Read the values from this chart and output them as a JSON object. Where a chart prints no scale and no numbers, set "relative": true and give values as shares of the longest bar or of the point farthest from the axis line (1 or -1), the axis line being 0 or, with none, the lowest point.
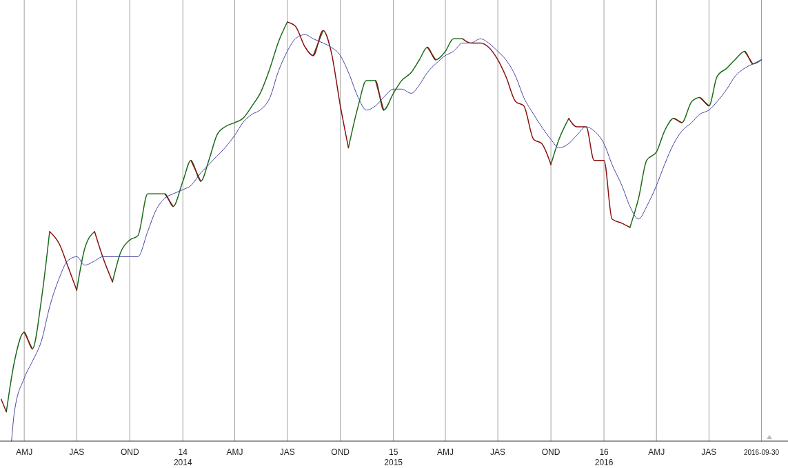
{
  "chart_data": {
    "type": "line",
    "relative": true,
    "grid": "x",
    "xlim": [
      "2013-02-18",
      "2016-11-15"
    ],
    "xticks": [
      {
        "value": "2013-04-01",
        "label": "AMJ"
      },
      {
        "value": "2013-07-01",
        "label": "JAS"
      },
      {
        "value": "2013-10-01",
        "label": "OND"
      },
      {
        "value": "2014-01-01",
        "label": "14"
      },
      {
        "value": "2014-04-01",
        "label": "AMJ"
      },
      {
        "value": "2014-07-01",
        "label": "JAS"
      },
      {
        "value": "2014-10-01",
        "label": "OND"
      },
      {
        "value": "2015-01-01",
        "label": "15"
      },
      {
        "value": "2015-04-01",
        "label": "AMJ"
      },
      {
        "value": "2015-07-01",
        "label": "JAS"
      },
      {
        "value": "2015-10-01",
        "label": "OND"
      },
      {
        "value": "2016-01-01",
        "label": "16"
      },
      {
        "value": "2016-04-01",
        "label": "AMJ"
      },
      {
        "value": "2016-07-01",
        "label": "JAS"
      },
      {
        "value": "2016-09-30",
        "label": "2016-09-30"
      }
    ],
    "annotations": [
      "2014",
      "2015",
      "2016"
    ],
    "x": [
      "2013-02-20",
      "2013-03-01",
      "2013-03-15",
      "2013-04-01",
      "2013-04-15",
      "2013-05-01",
      "2013-05-15",
      "2013-06-01",
      "2013-06-15",
      "2013-07-01",
      "2013-07-15",
      "2013-08-01",
      "2013-08-15",
      "2013-09-01",
      "2013-09-15",
      "2013-10-01",
      "2013-10-15",
      "2013-11-01",
      "2013-11-15",
      "2013-12-01",
      "2013-12-15",
      "2014-01-01",
      "2014-01-15",
      "2014-02-01",
      "2014-02-15",
      "2014-03-01",
      "2014-03-15",
      "2014-04-01",
      "2014-04-15",
      "2014-05-01",
      "2014-05-15",
      "2014-06-01",
      "2014-06-15",
      "2014-07-01",
      "2014-07-15",
      "2014-08-01",
      "2014-08-15",
      "2014-09-01",
      "2014-09-15",
      "2014-10-01",
      "2014-10-15",
      "2014-11-01",
      "2014-11-15",
      "2014-12-01",
      "2014-12-15",
      "2015-01-01",
      "2015-01-15",
      "2015-02-01",
      "2015-02-15",
      "2015-03-01",
      "2015-03-15",
      "2015-04-01",
      "2015-04-15",
      "2015-05-01",
      "2015-05-15",
      "2015-06-01",
      "2015-06-15",
      "2015-07-01",
      "2015-07-15",
      "2015-08-01",
      "2015-08-15",
      "2015-09-01",
      "2015-09-15",
      "2015-10-01",
      "2015-10-15",
      "2015-11-01",
      "2015-11-15",
      "2015-12-01",
      "2015-12-15",
      "2016-01-01",
      "2016-01-15",
      "2016-02-01",
      "2016-02-15",
      "2016-03-01",
      "2016-03-15",
      "2016-04-01",
      "2016-04-15",
      "2016-05-01",
      "2016-05-15",
      "2016-06-01",
      "2016-06-15",
      "2016-07-01",
      "2016-07-15",
      "2016-08-01",
      "2016-08-15",
      "2016-09-01",
      "2016-09-15",
      "2016-09-30"
    ],
    "series": [
      {
        "color": "#1b6b1b",
        "values": [
          null,
          0.07,
          0.19,
          0.26,
          0.22,
          0.34,
          0.5,
          null,
          null,
          0.36,
          0.46,
          0.5,
          null,
          0.38,
          0.45,
          0.48,
          0.49,
          0.59,
          0.59,
          0.59,
          0.56,
          0.62,
          0.67,
          0.62,
          0.67,
          0.73,
          0.75,
          0.76,
          0.77,
          0.8,
          0.83,
          0.89,
          0.95,
          1.0,
          null,
          null,
          0.92,
          0.98,
          null,
          null,
          0.7,
          0.8,
          0.86,
          0.86,
          0.79,
          0.83,
          0.86,
          0.88,
          0.91,
          0.94,
          0.91,
          0.93,
          0.96,
          0.96,
          null,
          null,
          null,
          null,
          null,
          null,
          null,
          null,
          null,
          0.66,
          0.72,
          0.77,
          null,
          null,
          null,
          null,
          null,
          null,
          0.51,
          0.58,
          0.67,
          0.69,
          0.74,
          0.77,
          0.76,
          0.81,
          0.82,
          0.8,
          0.87,
          0.89,
          0.91,
          0.93,
          0.9,
          0.91
        ]
      },
      {
        "color": "#8b0f0f",
        "values": [
          0.1,
          0.07,
          null,
          0.26,
          0.22,
          null,
          0.5,
          0.47,
          0.42,
          0.36,
          null,
          0.5,
          0.44,
          0.38,
          null,
          null,
          null,
          null,
          null,
          0.59,
          0.56,
          null,
          0.67,
          0.62,
          null,
          null,
          null,
          null,
          null,
          null,
          null,
          null,
          null,
          1.0,
          0.99,
          0.94,
          0.92,
          0.98,
          0.93,
          0.8,
          0.7,
          null,
          null,
          0.86,
          0.79,
          null,
          null,
          null,
          null,
          0.94,
          0.91,
          null,
          null,
          0.96,
          0.95,
          0.95,
          0.94,
          0.91,
          0.87,
          0.81,
          0.8,
          0.72,
          0.71,
          0.66,
          null,
          0.77,
          0.75,
          0.75,
          0.67,
          0.67,
          0.53,
          0.52,
          0.51,
          null,
          null,
          null,
          null,
          0.77,
          0.76,
          null,
          0.82,
          0.8,
          null,
          null,
          null,
          0.93,
          0.9,
          null
        ]
      },
      {
        "color": "#4646a0",
        "x": [
          "2013-03-10",
          "2013-03-15",
          "2013-04-01",
          "2013-04-15",
          "2013-05-01",
          "2013-05-15",
          "2013-06-01",
          "2013-06-15",
          "2013-07-01",
          "2013-07-15",
          "2013-08-01",
          "2013-08-15",
          "2013-09-01",
          "2013-09-15",
          "2013-10-01",
          "2013-10-15",
          "2013-11-01",
          "2013-11-15",
          "2013-12-01",
          "2013-12-15",
          "2014-01-01",
          "2014-01-15",
          "2014-02-01",
          "2014-02-15",
          "2014-03-01",
          "2014-03-15",
          "2014-04-01",
          "2014-04-15",
          "2014-05-01",
          "2014-05-15",
          "2014-06-01",
          "2014-06-15",
          "2014-07-01",
          "2014-07-15",
          "2014-08-01",
          "2014-08-15",
          "2014-09-01",
          "2014-09-15",
          "2014-10-01",
          "2014-10-15",
          "2014-11-01",
          "2014-11-15",
          "2014-12-01",
          "2014-12-15",
          "2015-01-01",
          "2015-01-15",
          "2015-02-01",
          "2015-02-15",
          "2015-03-01",
          "2015-03-15",
          "2015-04-01",
          "2015-04-15",
          "2015-05-01",
          "2015-05-15",
          "2015-06-01",
          "2015-06-15",
          "2015-07-01",
          "2015-07-15",
          "2015-08-01",
          "2015-08-15",
          "2015-09-01",
          "2015-09-15",
          "2015-10-01",
          "2015-10-15",
          "2015-11-01",
          "2015-11-15",
          "2015-12-01",
          "2015-12-15",
          "2016-01-01",
          "2016-01-15",
          "2016-02-01",
          "2016-02-15",
          "2016-03-01",
          "2016-03-15",
          "2016-04-01",
          "2016-04-15",
          "2016-05-01",
          "2016-05-15",
          "2016-06-01",
          "2016-06-15",
          "2016-07-01",
          "2016-07-15",
          "2016-08-01",
          "2016-08-15",
          "2016-09-01",
          "2016-09-15",
          "2016-09-30"
        ],
        "values": [
          0.0,
          0.07,
          0.15,
          0.19,
          0.24,
          0.32,
          0.39,
          0.43,
          0.44,
          0.42,
          0.43,
          0.44,
          0.44,
          0.44,
          0.44,
          0.44,
          0.5,
          0.55,
          0.58,
          0.59,
          0.6,
          0.61,
          0.64,
          0.66,
          0.68,
          0.7,
          0.73,
          0.76,
          0.78,
          0.79,
          0.82,
          0.88,
          0.93,
          0.96,
          0.97,
          0.96,
          0.95,
          0.94,
          0.92,
          0.88,
          0.82,
          0.79,
          0.8,
          0.82,
          0.84,
          0.84,
          0.83,
          0.85,
          0.88,
          0.9,
          0.92,
          0.93,
          0.95,
          0.95,
          0.96,
          0.95,
          0.93,
          0.91,
          0.87,
          0.82,
          0.78,
          0.75,
          0.72,
          0.7,
          0.71,
          0.73,
          0.75,
          0.74,
          0.71,
          0.66,
          0.61,
          0.56,
          0.53,
          0.56,
          0.61,
          0.66,
          0.71,
          0.74,
          0.76,
          0.78,
          0.79,
          0.81,
          0.84,
          0.87,
          0.89,
          0.9,
          0.91
        ]
      }
    ]
  }
}
